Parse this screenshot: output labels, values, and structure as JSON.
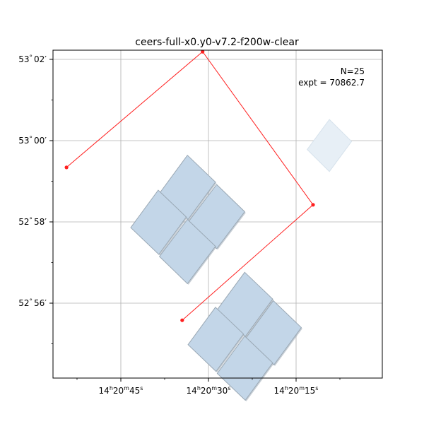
{
  "chart_data": {
    "type": "footprint",
    "title": "ceers-full-x0.y0-v7.2-f200w-clear",
    "annotation": [
      "N=25",
      "expt = 70862.7"
    ],
    "colors": {
      "footprint_fill": "#c3d6e8",
      "footprint_edge": "#9aa8b4",
      "faint_fill": "#e7eff6",
      "track": "#ff2020",
      "grid": "#b0b0b0"
    },
    "grid": true,
    "x_ticks": [
      {
        "ra_s": 45,
        "h": "14",
        "m": "20",
        "s": "45"
      },
      {
        "ra_s": 30,
        "h": "14",
        "m": "20",
        "s": "30"
      },
      {
        "ra_s": 15,
        "h": "14",
        "m": "20",
        "s": "15"
      }
    ],
    "y_ticks": [
      {
        "dec_min": 62,
        "deg": "53",
        "min": "02"
      },
      {
        "dec_min": 60,
        "deg": "53",
        "min": "00"
      },
      {
        "dec_min": 58,
        "deg": "52",
        "min": "58"
      },
      {
        "dec_min": 56,
        "deg": "52",
        "min": "56"
      }
    ],
    "track": [
      {
        "ra_s": 54.3,
        "dec_min": 59.34
      },
      {
        "ra_s": 31.0,
        "dec_min": 62.19
      },
      {
        "ra_s": 12.1,
        "dec_min": 58.42
      },
      {
        "ra_s": 34.5,
        "dec_min": 55.58
      }
    ],
    "footprints": [
      {
        "corners": [
          [
            33.6,
            59.64
          ],
          [
            28.8,
            58.98
          ],
          [
            33.5,
            58.06
          ],
          [
            38.3,
            58.72
          ]
        ],
        "faint": false
      },
      {
        "corners": [
          [
            28.6,
            58.92
          ],
          [
            23.8,
            58.25
          ],
          [
            28.6,
            57.34
          ],
          [
            33.4,
            58.01
          ]
        ],
        "faint": false
      },
      {
        "corners": [
          [
            38.6,
            58.78
          ],
          [
            33.8,
            58.12
          ],
          [
            38.5,
            57.2
          ],
          [
            43.3,
            57.86
          ]
        ],
        "faint": false
      },
      {
        "corners": [
          [
            33.6,
            58.06
          ],
          [
            28.8,
            57.4
          ],
          [
            33.6,
            56.48
          ],
          [
            38.4,
            57.15
          ]
        ],
        "faint": false
      },
      {
        "corners": [
          [
            23.8,
            56.76
          ],
          [
            19.0,
            56.1
          ],
          [
            23.7,
            55.18
          ],
          [
            28.5,
            55.84
          ]
        ],
        "faint": false
      },
      {
        "corners": [
          [
            18.9,
            56.06
          ],
          [
            14.1,
            55.4
          ],
          [
            18.8,
            54.48
          ],
          [
            23.6,
            55.14
          ]
        ],
        "faint": false
      },
      {
        "corners": [
          [
            28.8,
            55.9
          ],
          [
            24.0,
            55.24
          ],
          [
            28.7,
            54.32
          ],
          [
            33.5,
            54.98
          ]
        ],
        "faint": false
      },
      {
        "corners": [
          [
            23.8,
            55.19
          ],
          [
            19.0,
            54.53
          ],
          [
            23.7,
            53.61
          ],
          [
            28.5,
            54.27
          ]
        ],
        "faint": false
      },
      {
        "corners": [
          [
            9.3,
            60.52
          ],
          [
            5.5,
            59.98
          ],
          [
            9.3,
            59.24
          ],
          [
            13.1,
            59.78
          ]
        ],
        "faint": true
      }
    ]
  }
}
